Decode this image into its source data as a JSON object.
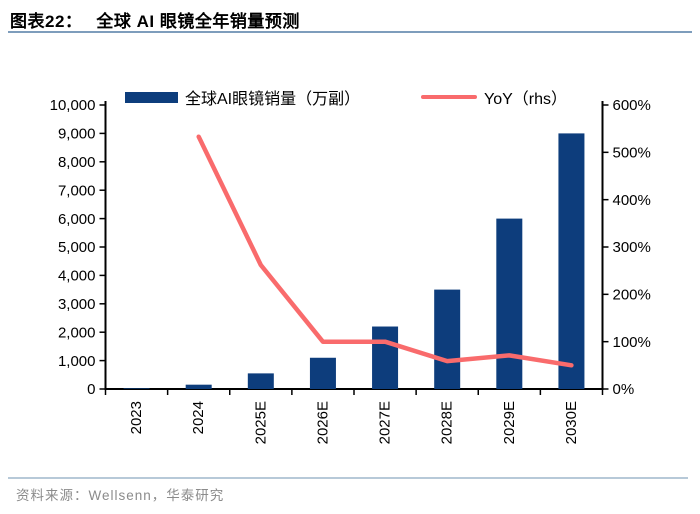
{
  "figure": {
    "title_prefix": "图表22：",
    "title": "全球 AI 眼镜全年销量预测",
    "source_note": "资料来源：Wellsenn，华泰研究"
  },
  "colors": {
    "bar": "#0D3D7C",
    "line": "#F96B6C",
    "axis": "#000000",
    "title_rule": "#7E9DBC",
    "footer_rule": "#B7C9D8",
    "source_text": "#8B8B8B"
  },
  "chart_data": {
    "type": "bar",
    "subtype": "bar-line combo, dual axis",
    "title": "全球 AI 眼镜全年销量预测",
    "categories": [
      "2023",
      "2024",
      "2025E",
      "2026E",
      "2027E",
      "2028E",
      "2029E",
      "2030E"
    ],
    "series": [
      {
        "name": "全球AI眼镜销量（万副）",
        "type": "bar",
        "axis": "left",
        "values": [
          24,
          152,
          550,
          1100,
          2200,
          3500,
          6000,
          9000
        ]
      },
      {
        "name": "YoY（rhs）",
        "type": "line",
        "axis": "right",
        "unit": "%",
        "values": [
          null,
          533,
          262,
          100,
          100,
          59,
          71,
          50
        ]
      }
    ],
    "left_axis": {
      "min": 0,
      "max": 10000,
      "step": 1000
    },
    "right_axis": {
      "min": 0,
      "max": 600,
      "step": 100,
      "suffix": "%"
    },
    "legend_position": "top",
    "grid": false
  }
}
